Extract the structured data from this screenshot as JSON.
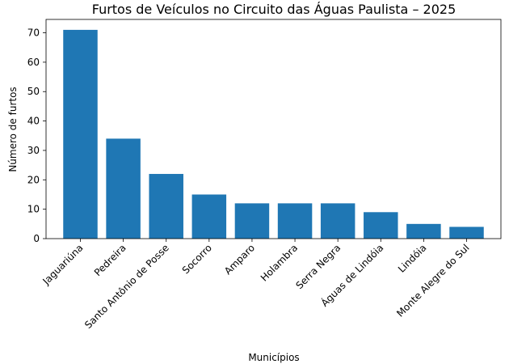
{
  "chart_data": {
    "type": "bar",
    "title": "Furtos de Veículos no Circuito das Águas Paulista – 2025",
    "xlabel": "Municípios",
    "ylabel": "Número de furtos",
    "categories": [
      "Jaguariúna",
      "Pedreira",
      "Santo Antônio de Posse",
      "Socorro",
      "Amparo",
      "Holambra",
      "Serra Negra",
      "Águas de Lindóia",
      "Lindóia",
      "Monte Alegre do Sul"
    ],
    "values": [
      71,
      34,
      22,
      15,
      12,
      12,
      12,
      9,
      5,
      4
    ],
    "ylim": [
      0,
      74.55
    ],
    "yticks": [
      0,
      10,
      20,
      30,
      40,
      50,
      60,
      70
    ],
    "grid": false,
    "bar_color": "#1f77b4"
  }
}
